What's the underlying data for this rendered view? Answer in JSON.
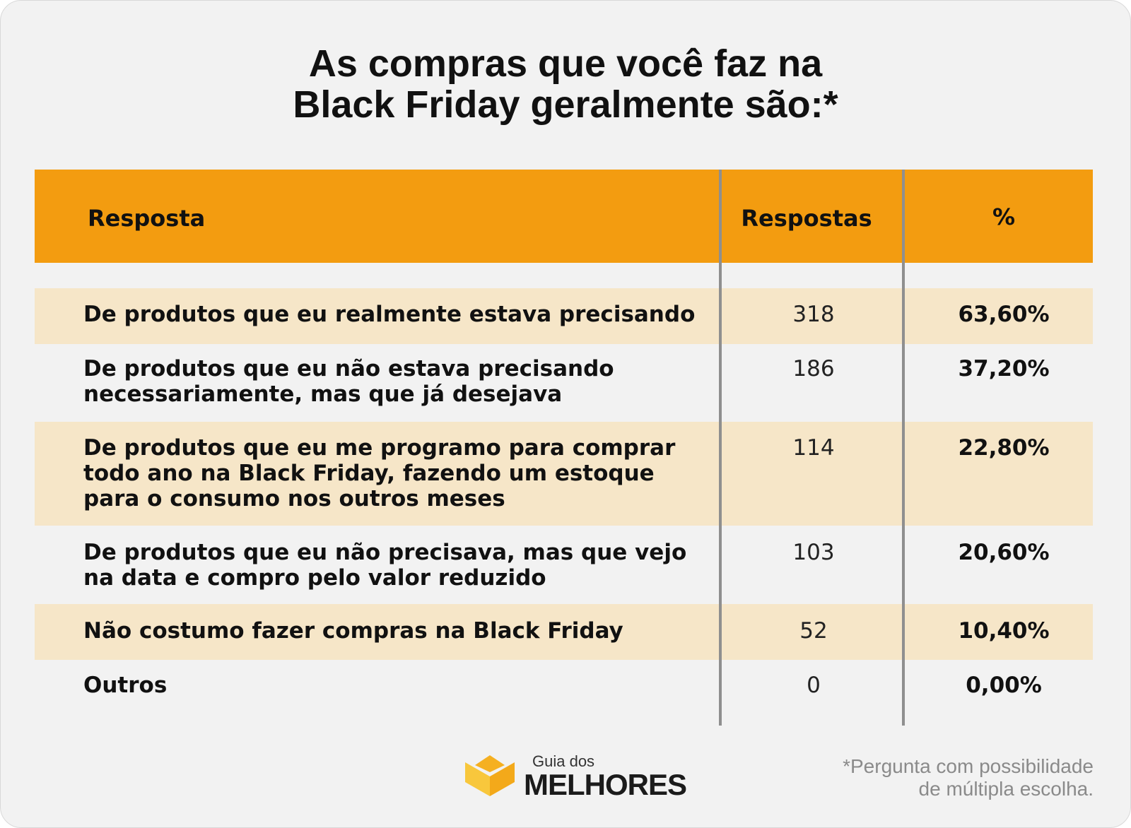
{
  "title_line1": "As compras que você faz na",
  "title_line2": "Black Friday geralmente são:*",
  "chart_data": {
    "type": "table",
    "columns": [
      "Resposta",
      "Respostas",
      "%"
    ],
    "rows": [
      {
        "resposta": "De produtos que eu realmente estava precisando",
        "respostas": "318",
        "pct": "63,60%",
        "highlight": true
      },
      {
        "resposta": "De produtos que eu não estava precisando\nnecessariamente, mas que já desejava",
        "respostas": "186",
        "pct": "37,20%",
        "highlight": false
      },
      {
        "resposta": "De produtos que eu me programo para comprar\ntodo ano na Black Friday, fazendo um estoque\npara o consumo nos outros meses",
        "respostas": "114",
        "pct": "22,80%",
        "highlight": true
      },
      {
        "resposta": "De produtos que eu não precisava, mas que vejo\nna data e compro pelo valor reduzido",
        "respostas": "103",
        "pct": "20,60%",
        "highlight": false
      },
      {
        "resposta": "Não costumo fazer compras na Black Friday",
        "respostas": "52",
        "pct": "10,40%",
        "highlight": true
      },
      {
        "resposta": "Outros",
        "respostas": "0",
        "pct": "0,00%",
        "highlight": false
      }
    ]
  },
  "colors": {
    "header": "#f39c10",
    "row_highlight": "#f6e6c8",
    "background": "#f2f2f2",
    "divider": "#8f8f8f"
  },
  "logo": {
    "small_text": "Guia dos",
    "big_text": "MELHORES"
  },
  "footnote": "*Pergunta com possibilidade\nde múltipla escolha."
}
